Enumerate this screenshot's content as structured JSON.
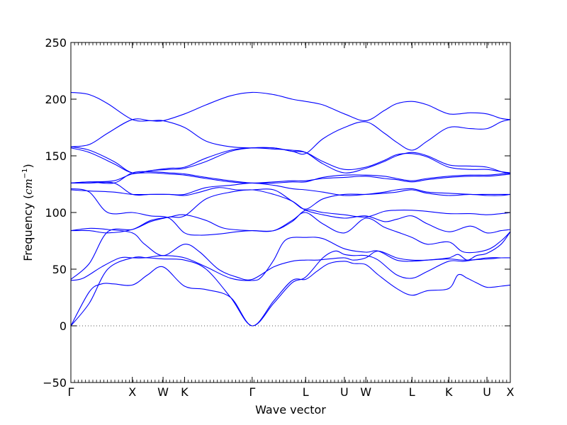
{
  "chart_data": {
    "type": "line",
    "title": "",
    "xlabel": "Wave vector",
    "ylabel": {
      "prefix": "Frequency (",
      "unit": "cm",
      "exponent": "−1",
      "suffix": ")"
    },
    "ylim": [
      -50,
      250
    ],
    "yticks": [
      -50,
      0,
      50,
      100,
      150,
      200,
      250
    ],
    "ytick_labels": [
      "−50",
      "0",
      "50",
      "100",
      "150",
      "200",
      "250"
    ],
    "xlim": [
      0,
      7.15
    ],
    "xticks": [
      {
        "label": "Γ",
        "x": 0
      },
      {
        "label": "X",
        "x": 1.0
      },
      {
        "label": "W",
        "x": 1.5
      },
      {
        "label": "K",
        "x": 1.85
      },
      {
        "label": "Γ",
        "x": 2.95
      },
      {
        "label": "L",
        "x": 3.82
      },
      {
        "label": "U",
        "x": 4.45
      },
      {
        "label": "W",
        "x": 4.8
      },
      {
        "label": "L",
        "x": 5.55
      },
      {
        "label": "K",
        "x": 6.15
      },
      {
        "label": "U",
        "x": 6.77
      },
      {
        "label": "X",
        "x": 7.15
      }
    ],
    "zero_line": {
      "y": 0,
      "style": "dotted"
    },
    "line_color": "#0000ff",
    "series": [
      {
        "x": [
          0,
          0.3,
          0.5,
          0.7,
          1.0,
          1.25,
          1.5,
          1.85,
          2.2,
          2.6,
          2.95,
          3.3,
          3.6,
          3.82,
          4.0,
          4.2,
          4.45,
          4.6,
          4.8,
          5.0,
          5.3,
          5.55,
          5.8,
          6.15,
          6.3,
          6.45,
          6.6,
          6.77,
          7.0,
          7.15
        ],
        "y": [
          0,
          30,
          37,
          37,
          36,
          45,
          52,
          35,
          32,
          25,
          0,
          22,
          40,
          41,
          48,
          55,
          57,
          55,
          54,
          45,
          33,
          27,
          31,
          33,
          45,
          42,
          38,
          34,
          35,
          36
        ]
      },
      {
        "x": [
          0,
          0.3,
          0.6,
          1.0,
          1.25,
          1.5,
          1.85,
          2.2,
          2.6,
          2.95,
          3.3,
          3.6,
          3.82,
          4.1,
          4.3,
          4.45,
          4.6,
          4.8,
          5.0,
          5.3,
          5.55,
          5.8,
          6.15,
          6.4,
          6.77,
          7.0,
          7.15
        ],
        "y": [
          0,
          20,
          50,
          60,
          60,
          59,
          58,
          50,
          25,
          0,
          20,
          38,
          43,
          60,
          66,
          63,
          62,
          62,
          58,
          45,
          42,
          48,
          57,
          57,
          60,
          60,
          60
        ]
      },
      {
        "x": [
          0,
          0.2,
          0.5,
          0.8,
          1.0,
          1.2,
          1.5,
          1.85,
          2.2,
          2.6,
          2.95,
          3.1,
          3.3,
          3.5,
          3.82,
          4.1,
          4.45,
          4.8,
          5.0,
          5.3,
          5.55,
          5.8,
          6.15,
          6.3,
          6.45,
          6.6,
          6.77,
          7.0,
          7.15
        ],
        "y": [
          40,
          42,
          52,
          60,
          60,
          60,
          62,
          60,
          52,
          42,
          40,
          43,
          58,
          76,
          78,
          77,
          68,
          65,
          66,
          58,
          57,
          58,
          60,
          63,
          58,
          62,
          64,
          72,
          83
        ]
      },
      {
        "x": [
          0,
          0.3,
          0.6,
          1.0,
          1.2,
          1.5,
          1.85,
          2.1,
          2.4,
          2.7,
          2.95,
          3.3,
          3.6,
          3.82,
          4.0,
          4.2,
          4.45,
          4.6,
          4.8,
          5.0,
          5.3,
          5.55,
          5.8,
          6.15,
          6.4,
          6.77,
          7.0,
          7.15
        ],
        "y": [
          84,
          86,
          85,
          82,
          72,
          62,
          72,
          65,
          50,
          43,
          41,
          52,
          57,
          58,
          58,
          59,
          60,
          58,
          60,
          66,
          60,
          58,
          58,
          59,
          58,
          59,
          60,
          60
        ]
      },
      {
        "x": [
          0,
          0.3,
          0.6,
          1.0,
          1.3,
          1.6,
          1.85,
          2.2,
          2.5,
          2.95,
          3.3,
          3.6,
          3.82,
          4.1,
          4.45,
          4.8,
          5.1,
          5.3,
          5.55,
          5.8,
          6.15,
          6.4,
          6.77,
          7.0,
          7.15
        ],
        "y": [
          41,
          55,
          83,
          85,
          92,
          96,
          98,
          93,
          86,
          84,
          84,
          93,
          100,
          90,
          82,
          95,
          87,
          83,
          78,
          72,
          74,
          65,
          67,
          75,
          83
        ]
      },
      {
        "x": [
          0,
          0.3,
          0.6,
          1.0,
          1.3,
          1.6,
          1.85,
          2.2,
          2.6,
          2.95,
          3.3,
          3.6,
          3.82,
          4.1,
          4.45,
          4.8,
          5.1,
          5.3,
          5.55,
          5.8,
          6.15,
          6.5,
          6.77,
          7.0,
          7.15
        ],
        "y": [
          84,
          84,
          82,
          85,
          93,
          96,
          97,
          112,
          118,
          120,
          116,
          110,
          102,
          98,
          95,
          97,
          92,
          94,
          97,
          90,
          83,
          88,
          82,
          84,
          85
        ]
      },
      {
        "x": [
          0,
          0.3,
          0.6,
          1.0,
          1.3,
          1.6,
          1.85,
          2.1,
          2.4,
          2.7,
          2.95,
          3.3,
          3.6,
          3.82,
          4.1,
          4.45,
          4.8,
          5.1,
          5.3,
          5.55,
          5.8,
          6.15,
          6.5,
          6.77,
          7.0,
          7.15
        ],
        "y": [
          121,
          118,
          100,
          100,
          97,
          95,
          82,
          80,
          81,
          83,
          84,
          84,
          92,
          102,
          100,
          98,
          96,
          101,
          102,
          102,
          101,
          99,
          99,
          98,
          99,
          100
        ]
      },
      {
        "x": [
          0,
          0.3,
          0.7,
          1.0,
          1.3,
          1.6,
          1.85,
          2.1,
          2.4,
          2.7,
          2.95,
          3.3,
          3.6,
          3.82,
          4.1,
          4.45,
          4.8,
          5.1,
          5.3,
          5.55,
          5.8,
          6.15,
          6.5,
          6.77,
          7.0,
          7.15
        ],
        "y": [
          120,
          119,
          118,
          116,
          116,
          116,
          115,
          118,
          122,
          120,
          120,
          120,
          110,
          103,
          112,
          116,
          116,
          117,
          118,
          120,
          117,
          115,
          116,
          115,
          115,
          116
        ]
      },
      {
        "x": [
          0,
          0.3,
          0.7,
          1.0,
          1.3,
          1.6,
          1.85,
          2.2,
          2.6,
          2.95,
          3.3,
          3.6,
          3.82,
          4.1,
          4.45,
          4.8,
          5.1,
          5.3,
          5.55,
          5.8,
          6.15,
          6.5,
          6.77,
          7.0,
          7.15
        ],
        "y": [
          126,
          126,
          126,
          116,
          116,
          116,
          116,
          122,
          124,
          126,
          124,
          121,
          120,
          118,
          115,
          116,
          118,
          120,
          121,
          118,
          117,
          116,
          116,
          116,
          116
        ]
      },
      {
        "x": [
          0,
          0.3,
          0.7,
          1.0,
          1.3,
          1.6,
          1.85,
          2.2,
          2.6,
          2.95,
          3.3,
          3.6,
          3.82,
          4.1,
          4.45,
          4.8,
          5.1,
          5.3,
          5.55,
          5.8,
          6.15,
          6.5,
          6.77,
          7.0,
          7.15
        ],
        "y": [
          126,
          127,
          126,
          135,
          136,
          135,
          134,
          131,
          128,
          126,
          126,
          127,
          127,
          131,
          133,
          133,
          132,
          130,
          128,
          130,
          132,
          133,
          133,
          134,
          135
        ]
      },
      {
        "x": [
          0,
          0.3,
          0.7,
          1.0,
          1.3,
          1.6,
          1.85,
          2.2,
          2.6,
          2.95,
          3.3,
          3.6,
          3.82,
          4.1,
          4.45,
          4.8,
          5.1,
          5.3,
          5.55,
          5.8,
          6.15,
          6.5,
          6.77,
          7.0,
          7.15
        ],
        "y": [
          126,
          127,
          128,
          134,
          135,
          134,
          133,
          130,
          127,
          126,
          127,
          128,
          128,
          130,
          131,
          132,
          130,
          129,
          127,
          129,
          131,
          132,
          132,
          133,
          134
        ]
      },
      {
        "x": [
          0,
          0.3,
          0.7,
          1.0,
          1.3,
          1.6,
          1.85,
          2.2,
          2.6,
          2.95,
          3.3,
          3.6,
          3.82,
          4.1,
          4.45,
          4.8,
          5.1,
          5.3,
          5.55,
          5.8,
          6.15,
          6.5,
          6.77,
          7.0,
          7.15
        ],
        "y": [
          157,
          153,
          143,
          135,
          137,
          139,
          140,
          148,
          155,
          157,
          156,
          155,
          153,
          143,
          135,
          139,
          145,
          150,
          153,
          150,
          142,
          141,
          140,
          136,
          134
        ]
      },
      {
        "x": [
          0,
          0.3,
          0.7,
          1.0,
          1.3,
          1.6,
          1.85,
          2.2,
          2.6,
          2.95,
          3.3,
          3.6,
          3.82,
          4.1,
          4.45,
          4.8,
          5.1,
          5.3,
          5.55,
          5.8,
          6.15,
          6.5,
          6.77,
          7.0,
          7.15
        ],
        "y": [
          158,
          155,
          145,
          135,
          137,
          138,
          139,
          145,
          154,
          157,
          157,
          154,
          153,
          145,
          138,
          140,
          146,
          151,
          152,
          149,
          140,
          138,
          138,
          136,
          135
        ]
      },
      {
        "x": [
          0,
          0.3,
          0.6,
          1.0,
          1.3,
          1.5,
          1.85,
          2.2,
          2.6,
          2.95,
          3.3,
          3.6,
          3.82,
          4.1,
          4.45,
          4.8,
          5.1,
          5.3,
          5.55,
          5.8,
          6.15,
          6.5,
          6.77,
          7.0,
          7.15
        ],
        "y": [
          158,
          160,
          170,
          182,
          181,
          181,
          175,
          163,
          158,
          157,
          157,
          154,
          152,
          165,
          175,
          180,
          170,
          162,
          155,
          163,
          175,
          174,
          174,
          180,
          182
        ]
      },
      {
        "x": [
          0,
          0.3,
          0.6,
          1.0,
          1.3,
          1.5,
          1.85,
          2.2,
          2.6,
          2.95,
          3.3,
          3.6,
          3.82,
          4.1,
          4.45,
          4.8,
          5.1,
          5.3,
          5.55,
          5.8,
          6.15,
          6.5,
          6.77,
          7.0,
          7.15
        ],
        "y": [
          206,
          204,
          196,
          182,
          181,
          181,
          187,
          195,
          203,
          206,
          204,
          200,
          198,
          195,
          187,
          181,
          190,
          196,
          198,
          195,
          187,
          188,
          187,
          183,
          182
        ]
      }
    ]
  }
}
